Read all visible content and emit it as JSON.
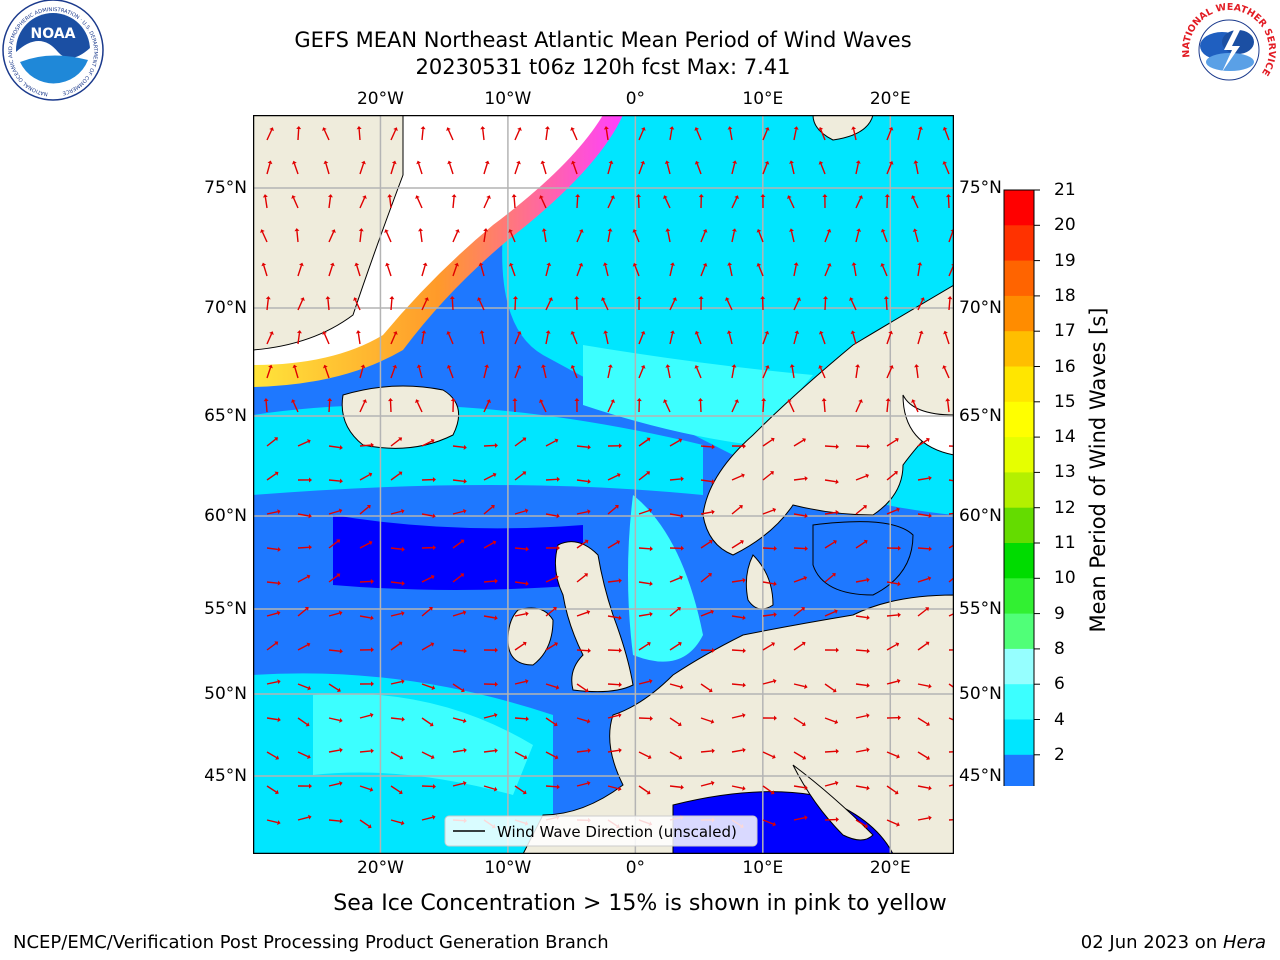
{
  "header": {
    "title_line1": "GEFS MEAN Northeast Atlantic Mean Period of Wind Waves",
    "title_line2": "20230531 t06z 120h fcst   Max: 7.41"
  },
  "logos": {
    "noaa_text": "NOAA",
    "noaa_ring": "NATIONAL OCEANIC AND ATMOSPHERIC ADMINISTRATION · U.S. DEPARTMENT OF COMMERCE",
    "nws_ring": "NATIONAL WEATHER SERVICE"
  },
  "map": {
    "lon_range": [
      -30,
      25
    ],
    "lat_range": [
      41,
      78
    ],
    "lon_ticks": [
      "20°W",
      "10°W",
      "0°",
      "10°E",
      "20°E"
    ],
    "lat_ticks": [
      "75°N",
      "70°N",
      "65°N",
      "60°N",
      "55°N",
      "50°N",
      "45°N"
    ],
    "legend_label": "Wind Wave Direction (unscaled)",
    "colors": {
      "land": "#efecdc",
      "ice_free": "#ffffff",
      "grid": "#b4b4b4",
      "arrow": "#e00000",
      "sea_ice_pink": "#ff40ff",
      "sea_ice_orange": "#ff9a2a",
      "sea_ice_yellow": "#ffe53a"
    }
  },
  "colorbar": {
    "label": "Mean Period of Wind Waves [s]",
    "tick_labels": [
      "21",
      "20",
      "19",
      "18",
      "17",
      "16",
      "15",
      "14",
      "13",
      "12",
      "11",
      "10",
      "9",
      "8",
      "6",
      "4",
      "2"
    ],
    "colors": [
      "#0000ff",
      "#1e78ff",
      "#00e6ff",
      "#3cffff",
      "#96ffff",
      "#50ff78",
      "#32f032",
      "#00dc00",
      "#64dc00",
      "#b4f000",
      "#e6ff00",
      "#ffff00",
      "#ffe600",
      "#ffbe00",
      "#ff8c00",
      "#ff6400",
      "#ff3200",
      "#ff0000"
    ]
  },
  "caption": "Sea Ice Concentration > 15% is shown in pink to yellow",
  "footer": {
    "left": "NCEP/EMC/Verification Post Processing Product Generation Branch",
    "right_date": "02 Jun 2023 on ",
    "right_host": "Hera"
  }
}
